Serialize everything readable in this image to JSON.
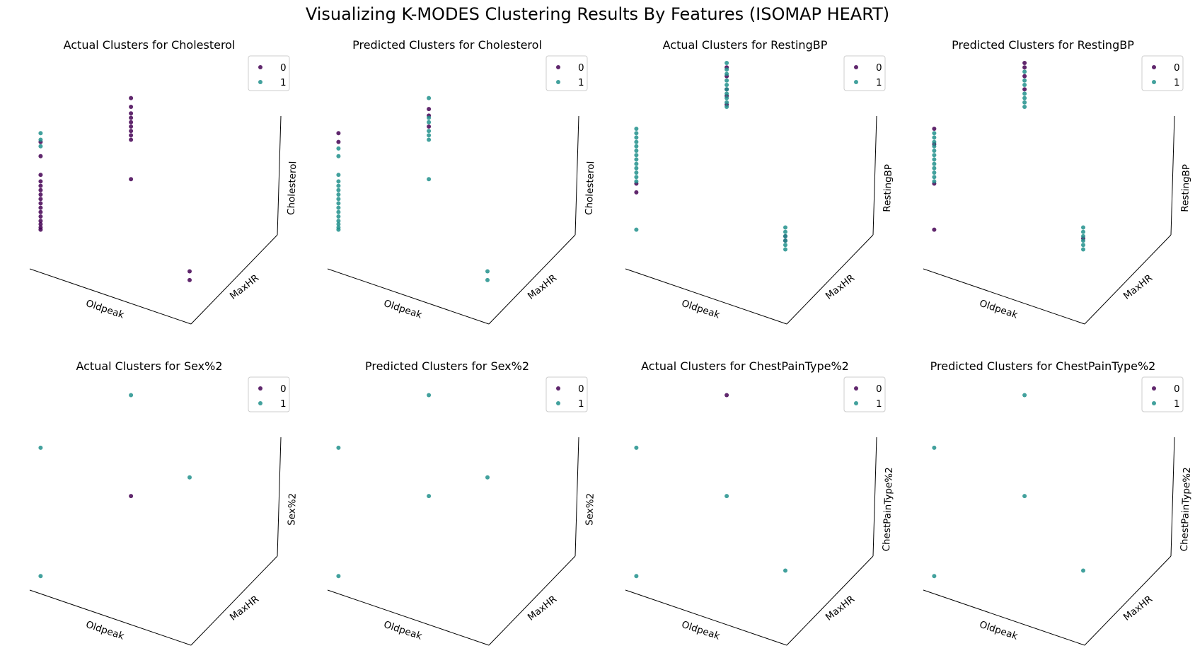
{
  "title": "Visualizing K-MODES Clustering Results By Features (ISOMAP HEART)",
  "colors": {
    "0": "#440154",
    "1": "#21918c",
    "axis": "#000000",
    "legend_border": "#cccccc"
  },
  "legend_labels": [
    "0",
    "1"
  ],
  "chart_data": [
    {
      "type": "scatter",
      "projection": "3d",
      "title": "Actual Clusters for Cholesterol",
      "xlabel": "Oldpeak",
      "ylabel": "MaxHR",
      "zlabel": "Cholesterol",
      "grid": false,
      "legend_position": "top-right",
      "series": [
        {
          "name": "0",
          "columns": [
            {
              "x": 0.06,
              "y": 0.0,
              "z": [
                0.28,
                0.3,
                0.33,
                0.36,
                0.4,
                0.44,
                0.48,
                0.52,
                0.56,
                0.6,
                0.64,
                0.68,
                0.72,
                0.78,
                0.95,
                1.08
              ]
            },
            {
              "x": 0.63,
              "y": 0.0,
              "z": [
                0.74,
                1.1,
                1.14,
                1.18,
                1.22,
                1.26,
                1.3,
                1.34,
                1.4,
                1.48
              ]
            },
            {
              "x": 1.0,
              "y": 0.0,
              "z": [
                -0.1,
                -0.18
              ]
            }
          ]
        },
        {
          "name": "1",
          "columns": [
            {
              "x": 0.06,
              "y": 0.0,
              "z": [
                1.04,
                1.1,
                1.16
              ]
            },
            {
              "x": 0.63,
              "y": 0.0,
              "z": []
            },
            {
              "x": 1.0,
              "y": 0.0,
              "z": []
            }
          ]
        }
      ]
    },
    {
      "type": "scatter",
      "projection": "3d",
      "title": "Predicted Clusters for Cholesterol",
      "xlabel": "Oldpeak",
      "ylabel": "MaxHR",
      "zlabel": "Cholesterol",
      "grid": false,
      "legend_position": "top-right",
      "series": [
        {
          "name": "0",
          "columns": [
            {
              "x": 0.06,
              "y": 0.0,
              "z": [
                1.08,
                1.16
              ]
            },
            {
              "x": 0.63,
              "y": 0.0,
              "z": [
                1.22,
                1.32,
                1.38
              ]
            },
            {
              "x": 1.0,
              "y": 0.0,
              "z": []
            }
          ]
        },
        {
          "name": "1",
          "columns": [
            {
              "x": 0.06,
              "y": 0.0,
              "z": [
                0.28,
                0.3,
                0.33,
                0.36,
                0.4,
                0.44,
                0.48,
                0.52,
                0.56,
                0.6,
                0.64,
                0.68,
                0.72,
                0.78,
                0.95,
                1.02
              ]
            },
            {
              "x": 0.63,
              "y": 0.0,
              "z": [
                0.74,
                1.1,
                1.14,
                1.18,
                1.26,
                1.3,
                1.48
              ]
            },
            {
              "x": 1.0,
              "y": 0.0,
              "z": [
                -0.1,
                -0.18
              ]
            }
          ]
        }
      ]
    },
    {
      "type": "scatter",
      "projection": "3d",
      "title": "Actual Clusters for RestingBP",
      "xlabel": "Oldpeak",
      "ylabel": "MaxHR",
      "zlabel": "RestingBP",
      "grid": false,
      "legend_position": "top-right",
      "series": [
        {
          "name": "0",
          "columns": [
            {
              "x": 0.06,
              "y": 0.0,
              "z": [
                0.62,
                0.7
              ]
            },
            {
              "x": 0.63,
              "y": 0.0,
              "z": [
                1.42,
                1.5,
                1.56,
                1.68,
                1.76
              ]
            },
            {
              "x": 1.0,
              "y": 0.0,
              "z": [
                0.18,
                0.22
              ]
            }
          ]
        },
        {
          "name": "1",
          "columns": [
            {
              "x": 0.06,
              "y": 0.0,
              "z": [
                0.28,
                0.72,
                0.76,
                0.8,
                0.84,
                0.88,
                0.92,
                0.96,
                1.0,
                1.04,
                1.08,
                1.12,
                1.16,
                1.2
              ]
            },
            {
              "x": 0.63,
              "y": 0.0,
              "z": [
                1.4,
                1.44,
                1.48,
                1.52,
                1.56,
                1.6,
                1.64,
                1.7,
                1.74,
                1.8
              ]
            },
            {
              "x": 1.0,
              "y": 0.0,
              "z": [
                0.1,
                0.14,
                0.18,
                0.22,
                0.26,
                0.3
              ]
            }
          ]
        }
      ]
    },
    {
      "type": "scatter",
      "projection": "3d",
      "title": "Predicted Clusters for RestingBP",
      "xlabel": "Oldpeak",
      "ylabel": "MaxHR",
      "zlabel": "RestingBP",
      "grid": false,
      "legend_position": "top-right",
      "series": [
        {
          "name": "0",
          "columns": [
            {
              "x": 0.06,
              "y": 0.0,
              "z": [
                0.28,
                0.7,
                1.06,
                1.2
              ]
            },
            {
              "x": 0.63,
              "y": 0.0,
              "z": [
                1.56,
                1.68,
                1.76,
                1.8
              ]
            },
            {
              "x": 1.0,
              "y": 0.0,
              "z": [
                0.2
              ]
            }
          ]
        },
        {
          "name": "1",
          "columns": [
            {
              "x": 0.06,
              "y": 0.0,
              "z": [
                0.72,
                0.76,
                0.8,
                0.84,
                0.88,
                0.92,
                0.96,
                1.0,
                1.04,
                1.08,
                1.12,
                1.16
              ]
            },
            {
              "x": 0.63,
              "y": 0.0,
              "z": [
                1.4,
                1.44,
                1.48,
                1.52,
                1.6,
                1.64,
                1.72
              ]
            },
            {
              "x": 1.0,
              "y": 0.0,
              "z": [
                0.1,
                0.14,
                0.18,
                0.22,
                0.26,
                0.3
              ]
            }
          ]
        }
      ]
    },
    {
      "type": "scatter",
      "projection": "3d",
      "title": "Actual Clusters for Sex%2",
      "xlabel": "Oldpeak",
      "ylabel": "MaxHR",
      "zlabel": "Sex%2",
      "grid": false,
      "legend_position": "top-right",
      "series": [
        {
          "name": "0",
          "columns": [
            {
              "x": 0.06,
              "y": 0.0,
              "z": []
            },
            {
              "x": 0.63,
              "y": 0.0,
              "z": [
                0.78
              ]
            },
            {
              "x": 1.0,
              "y": 0.0,
              "z": []
            }
          ]
        },
        {
          "name": "1",
          "columns": [
            {
              "x": 0.06,
              "y": 0.0,
              "z": [
                0.05,
                1.22
              ]
            },
            {
              "x": 0.63,
              "y": 0.0,
              "z": [
                1.7
              ]
            },
            {
              "x": 1.0,
              "y": 0.0,
              "z": [
                0.95
              ]
            }
          ]
        }
      ]
    },
    {
      "type": "scatter",
      "projection": "3d",
      "title": "Predicted Clusters for Sex%2",
      "xlabel": "Oldpeak",
      "ylabel": "MaxHR",
      "zlabel": "Sex%2",
      "grid": false,
      "legend_position": "top-right",
      "series": [
        {
          "name": "0",
          "columns": [
            {
              "x": 0.06,
              "y": 0.0,
              "z": []
            },
            {
              "x": 0.63,
              "y": 0.0,
              "z": []
            },
            {
              "x": 1.0,
              "y": 0.0,
              "z": []
            }
          ]
        },
        {
          "name": "1",
          "columns": [
            {
              "x": 0.06,
              "y": 0.0,
              "z": [
                0.05,
                1.22
              ]
            },
            {
              "x": 0.63,
              "y": 0.0,
              "z": [
                0.78,
                1.7
              ]
            },
            {
              "x": 1.0,
              "y": 0.0,
              "z": [
                0.95
              ]
            }
          ]
        }
      ]
    },
    {
      "type": "scatter",
      "projection": "3d",
      "title": "Actual Clusters for ChestPainType%2",
      "xlabel": "Oldpeak",
      "ylabel": "MaxHR",
      "zlabel": "ChestPainType%2",
      "grid": false,
      "legend_position": "top-right",
      "series": [
        {
          "name": "0",
          "columns": [
            {
              "x": 0.06,
              "y": 0.0,
              "z": []
            },
            {
              "x": 0.63,
              "y": 0.0,
              "z": [
                1.7
              ]
            },
            {
              "x": 1.0,
              "y": 0.0,
              "z": []
            }
          ]
        },
        {
          "name": "1",
          "columns": [
            {
              "x": 0.06,
              "y": 0.0,
              "z": [
                0.05,
                1.22
              ]
            },
            {
              "x": 0.63,
              "y": 0.0,
              "z": [
                0.78
              ]
            },
            {
              "x": 1.0,
              "y": 0.0,
              "z": [
                0.1
              ]
            }
          ]
        }
      ]
    },
    {
      "type": "scatter",
      "projection": "3d",
      "title": "Predicted Clusters for ChestPainType%2",
      "xlabel": "Oldpeak",
      "ylabel": "MaxHR",
      "zlabel": "ChestPainType%2",
      "grid": false,
      "legend_position": "top-right",
      "series": [
        {
          "name": "0",
          "columns": [
            {
              "x": 0.06,
              "y": 0.0,
              "z": []
            },
            {
              "x": 0.63,
              "y": 0.0,
              "z": []
            },
            {
              "x": 1.0,
              "y": 0.0,
              "z": []
            }
          ]
        },
        {
          "name": "1",
          "columns": [
            {
              "x": 0.06,
              "y": 0.0,
              "z": [
                0.05,
                1.22
              ]
            },
            {
              "x": 0.63,
              "y": 0.0,
              "z": [
                0.78,
                1.7
              ]
            },
            {
              "x": 1.0,
              "y": 0.0,
              "z": [
                0.1
              ]
            }
          ]
        }
      ]
    }
  ]
}
